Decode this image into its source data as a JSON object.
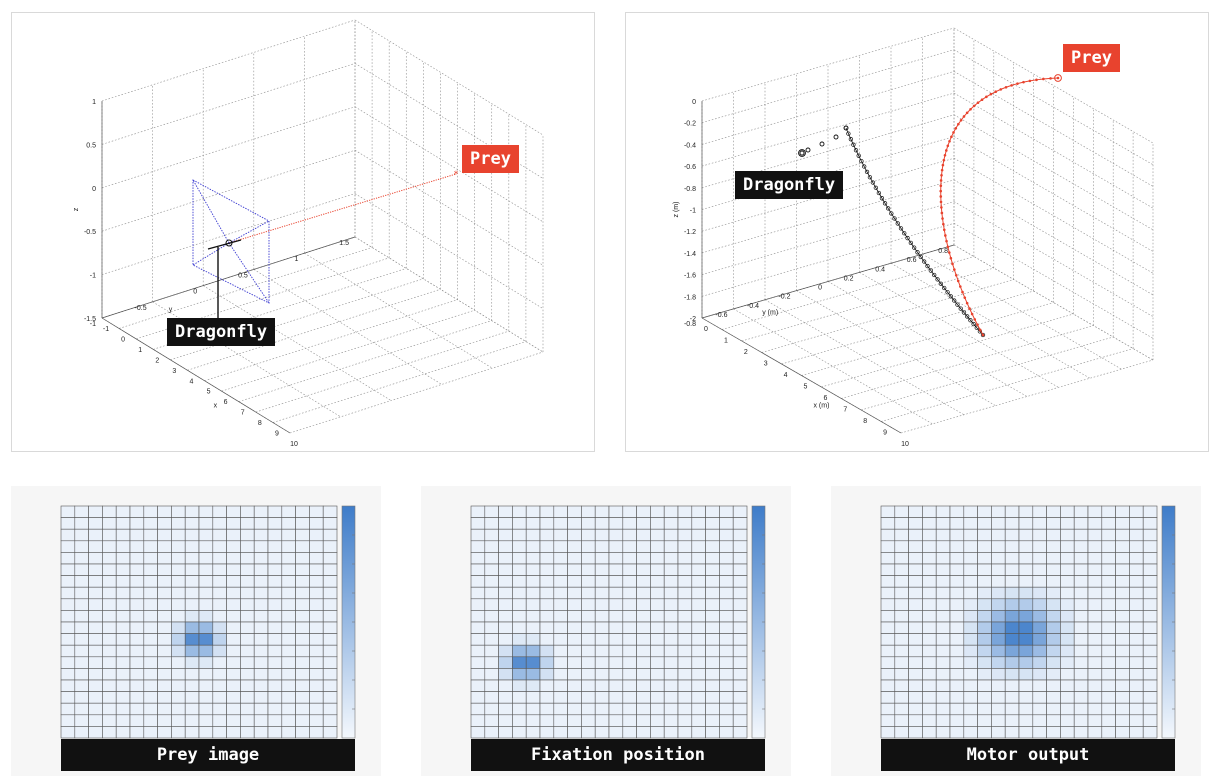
{
  "chart_data": [
    {
      "type": "scatter3d",
      "title": "",
      "xlabel": "x",
      "ylabel": "y",
      "zlabel": "z",
      "xlim": [
        -1,
        10
      ],
      "ylim": [
        -1,
        1.5
      ],
      "zlim": [
        -1.5,
        1
      ],
      "x_ticks": [
        "-1",
        "0",
        "1",
        "2",
        "3",
        "4",
        "5",
        "6",
        "7",
        "8",
        "9",
        "10"
      ],
      "y_ticks": [
        "-1",
        "-0.5",
        "0",
        "0.5",
        "1",
        "1.5"
      ],
      "z_ticks": [
        "-1.5",
        "-1",
        "-0.5",
        "0",
        "0.5",
        "1"
      ],
      "grid": true,
      "annotations": [
        {
          "text": "Dragonfly",
          "color": "#111111"
        },
        {
          "text": "Prey",
          "color": "#e8432e"
        }
      ],
      "colors": {
        "prey_line": "#e8432e",
        "view_cone": "#3b3bd1",
        "dragonfly": "#111111"
      }
    },
    {
      "type": "scatter3d",
      "title": "",
      "xlabel": "x (m)",
      "ylabel": "y (m)",
      "zlabel": "z (m)",
      "xlim": [
        0,
        10
      ],
      "ylim": [
        -0.8,
        0.8
      ],
      "zlim": [
        -2,
        0
      ],
      "x_ticks": [
        "0",
        "1",
        "2",
        "3",
        "4",
        "5",
        "6",
        "7",
        "8",
        "9",
        "10"
      ],
      "y_ticks": [
        "-0.8",
        "-0.6",
        "-0.4",
        "-0.2",
        "0",
        "0.2",
        "0.4",
        "0.6",
        "0.8"
      ],
      "z_ticks": [
        "-2",
        "-1.8",
        "-1.6",
        "-1.4",
        "-1.2",
        "-1",
        "-0.8",
        "-0.6",
        "-0.4",
        "-0.2",
        "0"
      ],
      "grid": true,
      "annotations": [
        {
          "text": "Dragonfly",
          "color": "#111111"
        },
        {
          "text": "Prey",
          "color": "#e8432e"
        }
      ],
      "series": [
        {
          "name": "",
          "color": "#111111"
        },
        {
          "name": "",
          "color": "#e8432e"
        }
      ]
    },
    {
      "type": "heatmap",
      "label": "Prey image",
      "rows": 20,
      "cols": 20,
      "peaks": [
        {
          "row": 11,
          "col": 9.5,
          "amp": 1.0,
          "sigma": 0.9
        }
      ],
      "color_max": "#3e7cc9",
      "color_min": "#eaf1fa"
    },
    {
      "type": "heatmap",
      "label": "Fixation position",
      "rows": 20,
      "cols": 20,
      "peaks": [
        {
          "row": 13,
          "col": 3.5,
          "amp": 1.0,
          "sigma": 0.9
        }
      ],
      "color_max": "#3e7cc9",
      "color_min": "#eaf1fa"
    },
    {
      "type": "heatmap",
      "label": "Motor output",
      "rows": 20,
      "cols": 20,
      "peaks": [
        {
          "row": 10.5,
          "col": 9.5,
          "amp": 1.0,
          "sigma": 1.7
        }
      ],
      "color_max": "#3e7cc9",
      "color_min": "#eaf1fa"
    }
  ]
}
